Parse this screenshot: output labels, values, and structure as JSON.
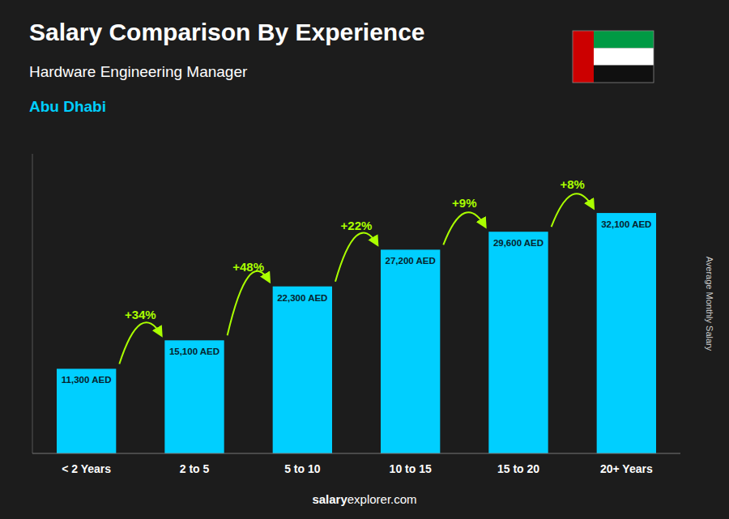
{
  "chart_data": {
    "type": "bar",
    "title": "Salary Comparison By Experience",
    "subtitle": "Hardware Engineering Manager",
    "annotations": [
      "Abu Dhabi"
    ],
    "watermark": [
      "salary",
      "explorer.com"
    ],
    "ylabel": "Average Monthly Salary",
    "categories": [
      "< 2 Years",
      "2 to 5",
      "5 to 10",
      "10 to 15",
      "15 to 20",
      "20+ Years"
    ],
    "values": [
      11300,
      15100,
      22300,
      27200,
      29600,
      32100
    ],
    "value_labels": [
      "11,300 AED",
      "15,100 AED",
      "22,300 AED",
      "27,200 AED",
      "29,600 AED",
      "32,100 AED"
    ],
    "data_labels": true,
    "change_labels": [
      "+34%",
      "+48%",
      "+22%",
      "+9%",
      "+8%"
    ],
    "color": "#00cfff",
    "ylim": [
      0,
      40000
    ],
    "tick_labels": "x",
    "grid": false
  }
}
